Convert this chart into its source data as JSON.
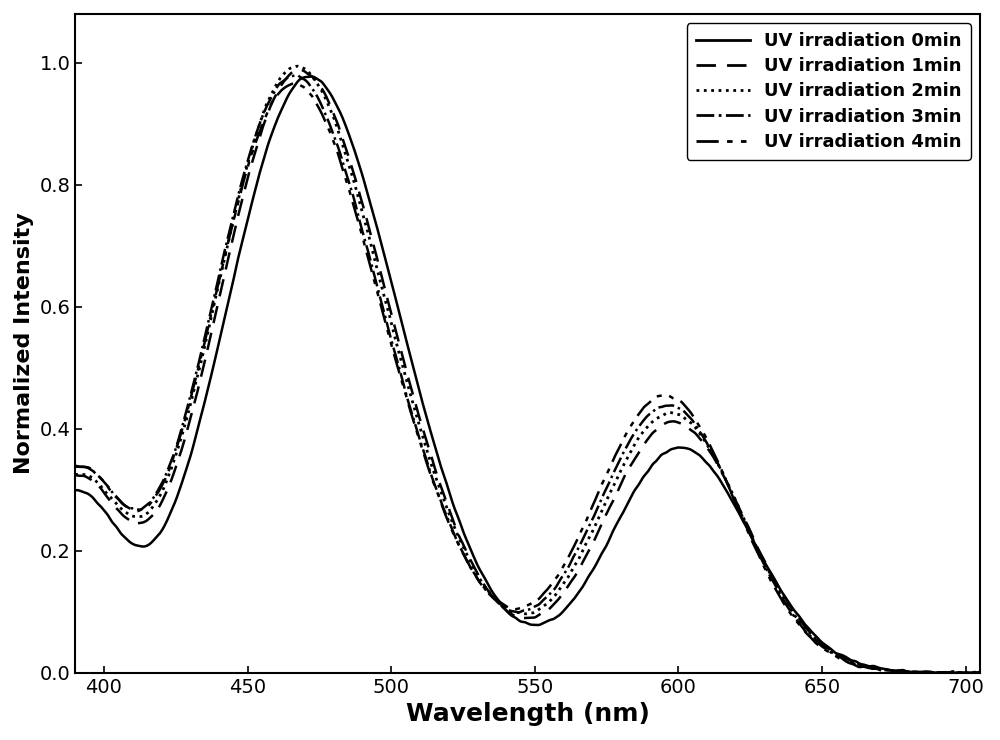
{
  "title": "",
  "xlabel": "Wavelength (nm)",
  "ylabel": "Normalized Intensity",
  "xlim": [
    390,
    705
  ],
  "ylim": [
    0.0,
    1.08
  ],
  "xticks": [
    400,
    450,
    500,
    550,
    600,
    650,
    700
  ],
  "yticks": [
    0.0,
    0.2,
    0.4,
    0.6,
    0.8,
    1.0
  ],
  "legend_labels": [
    "UV irradiation 0min",
    "UV irradiation 1min",
    "UV irradiation 2min",
    "UV irradiation 3min",
    "UV irradiation 4min"
  ],
  "background_color": "white",
  "xlabel_fontsize": 18,
  "ylabel_fontsize": 16,
  "tick_fontsize": 14,
  "legend_fontsize": 13
}
